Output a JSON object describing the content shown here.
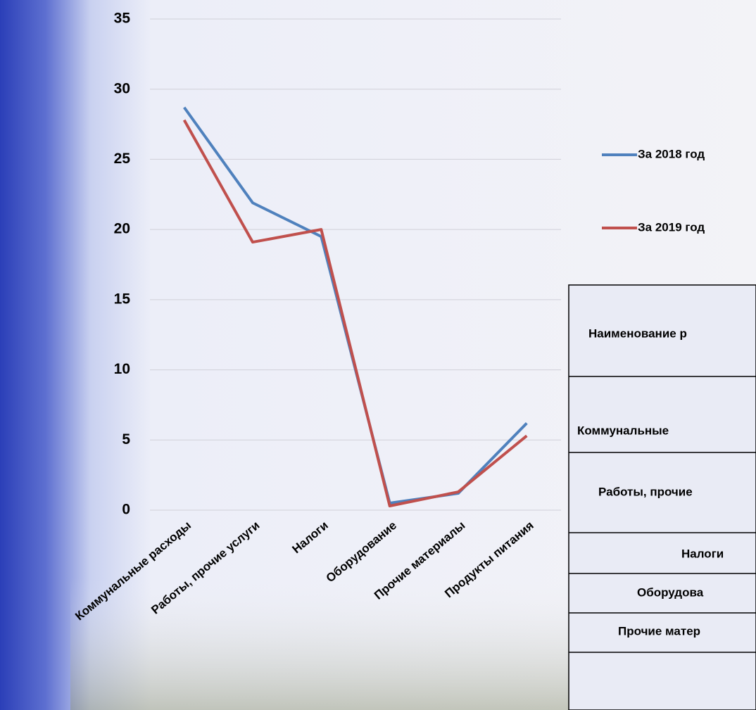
{
  "chart_data": {
    "type": "line",
    "categories": [
      "Коммунальные расходы",
      "Работы, прочие услуги",
      "Налоги",
      "Оборудование",
      "Прочие материалы",
      "Продукты питания"
    ],
    "series": [
      {
        "name": "За 2018 год",
        "color": "#4f81bd",
        "values": [
          28.7,
          21.9,
          19.5,
          0.5,
          1.2,
          6.2
        ]
      },
      {
        "name": "За 2019 год",
        "color": "#c0504d",
        "values": [
          27.8,
          19.1,
          20,
          0.3,
          1.3,
          5.3
        ]
      }
    ],
    "ylim": [
      0,
      35
    ],
    "yticks": [
      0,
      5,
      10,
      15,
      20,
      25,
      30,
      35
    ],
    "grid": true,
    "legend": "right"
  },
  "table": {
    "rows": [
      "Наименование р",
      "Коммунальные",
      "Работы, прочие",
      "Налоги",
      "Оборудова",
      "Прочие матер"
    ]
  }
}
